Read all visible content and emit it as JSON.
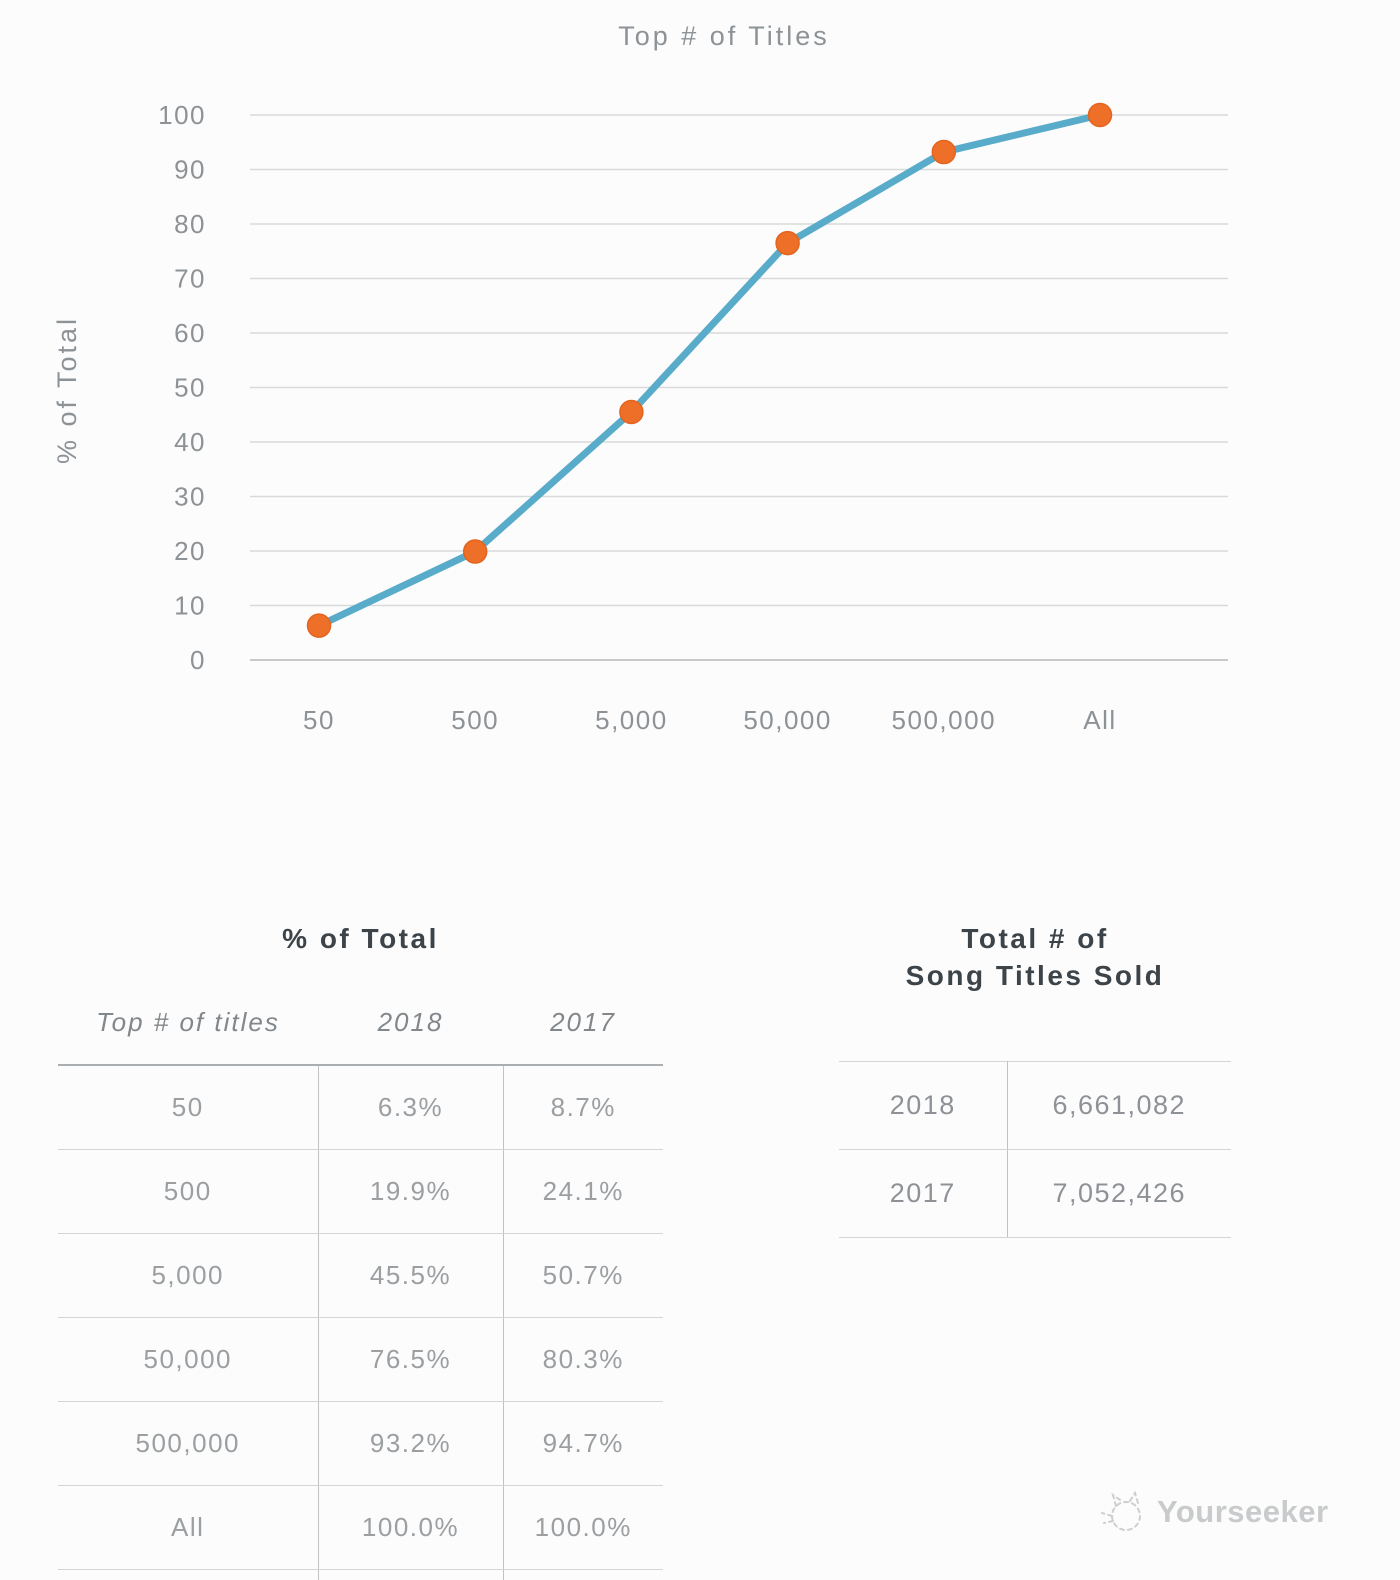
{
  "chart_data": {
    "type": "line",
    "title": "Top # of Titles",
    "ylabel": "% of Total",
    "xlabel": "",
    "categories": [
      "50",
      "500",
      "5,000",
      "50,000",
      "500,000",
      "All"
    ],
    "series": [
      {
        "name": "2018",
        "values": [
          6.3,
          19.9,
          45.5,
          76.5,
          93.2,
          100.0
        ]
      }
    ],
    "ylim": [
      0,
      100
    ],
    "ytick_step": 10,
    "grid": true,
    "legend": "none",
    "line_color": "#58abc9",
    "point_color": "#ee7028",
    "point_edge_color": "#e2641f",
    "grid_color": "#d8d9da",
    "axis_line_color": "#c7c9ca",
    "axis_text_color": "#8d9296"
  },
  "left_table": {
    "title": "% of Total",
    "columns": [
      "Top # of titles",
      "2018",
      "2017"
    ],
    "rows": [
      {
        "label": "50",
        "y2018": "6.3%",
        "y2017": "8.7%"
      },
      {
        "label": "500",
        "y2018": "19.9%",
        "y2017": "24.1%"
      },
      {
        "label": "5,000",
        "y2018": "45.5%",
        "y2017": "50.7%"
      },
      {
        "label": "50,000",
        "y2018": "76.5%",
        "y2017": "80.3%"
      },
      {
        "label": "500,000",
        "y2018": "93.2%",
        "y2017": "94.7%"
      },
      {
        "label": "All",
        "y2018": "100.0%",
        "y2017": "100.0%"
      }
    ]
  },
  "right_table": {
    "title_line1": "Total # of",
    "title_line2": "Song Titles Sold",
    "rows": [
      {
        "label": "2018",
        "value": "6,661,082"
      },
      {
        "label": "2017",
        "value": "7,052,426"
      }
    ]
  },
  "watermark": {
    "label": "Yourseeker",
    "icon": "cat-sketch-icon",
    "color": "#c8cacb"
  }
}
